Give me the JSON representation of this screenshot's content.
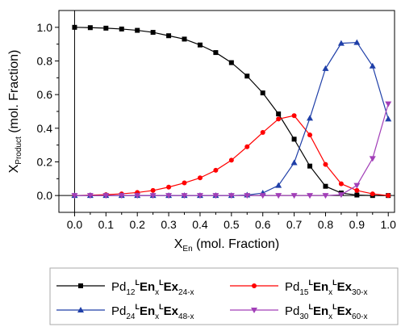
{
  "chart_data": {
    "type": "line",
    "x": [
      0,
      0.05,
      0.1,
      0.15,
      0.2,
      0.25,
      0.3,
      0.35,
      0.4,
      0.45,
      0.5,
      0.55,
      0.6,
      0.65,
      0.7,
      0.75,
      0.8,
      0.85,
      0.9,
      0.95,
      1.0
    ],
    "series": [
      {
        "name": "Pd12LEnxLEx24-x",
        "color": "#000000",
        "marker": "square",
        "legend": {
          "base": "Pd",
          "sub1": "12",
          "sup1": "L",
          "b1": "En",
          "sub2": "x",
          "sup2": "L",
          "b2": "Ex",
          "sub3": "24-x"
        },
        "values": [
          1.0,
          0.998,
          0.995,
          0.99,
          0.982,
          0.97,
          0.95,
          0.93,
          0.895,
          0.85,
          0.79,
          0.71,
          0.61,
          0.485,
          0.335,
          0.175,
          0.055,
          0.015,
          0.003,
          0.0,
          0.0
        ]
      },
      {
        "name": "Pd15LEnxLEx30-x",
        "color": "#ff0000",
        "marker": "circle",
        "legend": {
          "base": "Pd",
          "sub1": "15",
          "sup1": "L",
          "b1": "En",
          "sub2": "x",
          "sup2": "L",
          "b2": "Ex",
          "sub3": "30-x"
        },
        "values": [
          0.0,
          0.002,
          0.005,
          0.01,
          0.018,
          0.03,
          0.05,
          0.075,
          0.105,
          0.15,
          0.21,
          0.29,
          0.375,
          0.455,
          0.475,
          0.36,
          0.185,
          0.07,
          0.03,
          0.01,
          0.0
        ]
      },
      {
        "name": "Pd24LEnxLEx48-x",
        "color": "#1f3fa8",
        "marker": "triangle-up",
        "legend": {
          "base": "Pd",
          "sub1": "24",
          "sup1": "L",
          "b1": "En",
          "sub2": "x",
          "sup2": "L",
          "b2": "Ex",
          "sub3": "48-x"
        },
        "values": [
          0.0,
          0.0,
          0.0,
          0.0,
          0.0,
          0.0,
          0.0,
          0.0,
          0.0,
          0.0,
          0.0,
          0.003,
          0.015,
          0.06,
          0.195,
          0.46,
          0.755,
          0.905,
          0.91,
          0.77,
          0.455
        ]
      },
      {
        "name": "Pd30LEnxLEx60-x",
        "color": "#a23fb8",
        "marker": "triangle-down",
        "legend": {
          "base": "Pd",
          "sub1": "30",
          "sup1": "L",
          "b1": "En",
          "sub2": "x",
          "sup2": "L",
          "b2": "Ex",
          "sub3": "60-x"
        },
        "values": [
          0.0,
          0.0,
          0.0,
          0.0,
          0.0,
          0.0,
          0.0,
          0.0,
          0.0,
          0.0,
          0.0,
          0.0,
          0.0,
          0.0,
          0.0,
          0.0,
          0.0,
          0.005,
          0.06,
          0.22,
          0.545
        ]
      }
    ],
    "xlabel": {
      "main": "X",
      "sub": "En",
      "rest": " (mol. Fraction)"
    },
    "ylabel": {
      "main": "X",
      "sub": "Product",
      "rest": " (mol. Fraction)"
    },
    "xlim": [
      -0.05,
      1.02
    ],
    "ylim": [
      -0.1,
      1.1
    ],
    "xticks": [
      0.0,
      0.1,
      0.2,
      0.3,
      0.4,
      0.5,
      0.6,
      0.7,
      0.8,
      0.9,
      1.0
    ],
    "xtick_labels": [
      "0.0",
      "0.1",
      "0.2",
      "0.3",
      "0.4",
      "0.5",
      "0.6",
      "0.7",
      "0.8",
      "0.9",
      "1.0"
    ],
    "yticks": [
      0.0,
      0.2,
      0.4,
      0.6,
      0.8,
      1.0
    ],
    "ytick_labels": [
      "0.0",
      "0.2",
      "0.4",
      "0.6",
      "0.8",
      "1.0"
    ],
    "grid": false,
    "legend_position": "below-plot"
  }
}
